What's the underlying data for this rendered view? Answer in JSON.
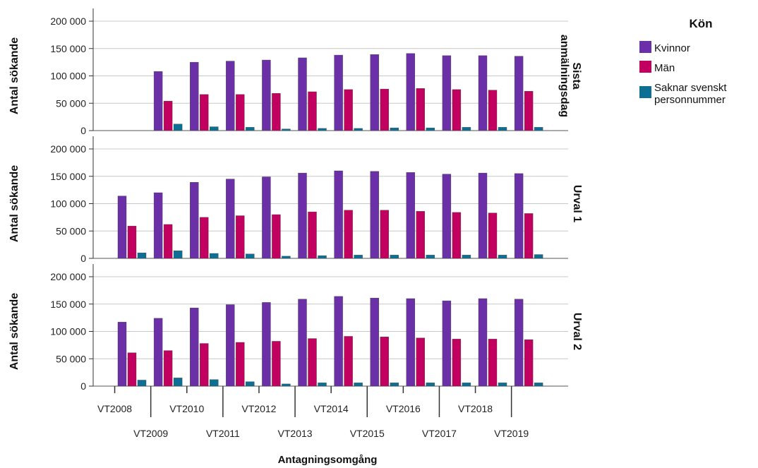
{
  "chart_data": {
    "type": "bar",
    "x_label": "Antagningsomgång",
    "y_label": "Antal sökande",
    "y_ticks": [
      "0",
      "50 000",
      "100 000",
      "150 000",
      "200 000"
    ],
    "ylim": [
      0,
      200000
    ],
    "grid": "horizontal",
    "legend_placement": "right",
    "categories": [
      "VT2008",
      "VT2009",
      "VT2010",
      "VT2011",
      "VT2012",
      "VT2013",
      "VT2014",
      "VT2015",
      "VT2016",
      "VT2017",
      "VT2018",
      "VT2019"
    ],
    "legend": {
      "title": "Kön",
      "entries": [
        {
          "label": "Kvinnor",
          "color": "#6b2fa8"
        },
        {
          "label": "Män",
          "color": "#c1005f"
        },
        {
          "label": "Saknar svenskt personnummer",
          "line1": "Saknar svenskt",
          "line2": "personnummer",
          "color": "#0d6f93"
        }
      ]
    },
    "panels": [
      {
        "label": "Sista anmälningsdag",
        "label_line1": "Sista",
        "label_line2": "anmälningsdag",
        "series": [
          {
            "name": "Kvinnor",
            "values": [
              0,
              108000,
              125000,
              127000,
              129000,
              133000,
              138000,
              139000,
              141000,
              137000,
              137000,
              136000
            ]
          },
          {
            "name": "Män",
            "values": [
              0,
              54000,
              66000,
              66000,
              68000,
              71000,
              75000,
              76000,
              77000,
              75000,
              74000,
              72000
            ]
          },
          {
            "name": "Saknar svenskt personnummer",
            "values": [
              0,
              12000,
              7000,
              6000,
              3000,
              4000,
              4000,
              5000,
              5000,
              6000,
              6000,
              6000
            ]
          }
        ]
      },
      {
        "label": "Urval 1",
        "series": [
          {
            "name": "Kvinnor",
            "values": [
              114000,
              120000,
              139000,
              145000,
              149000,
              156000,
              160000,
              159000,
              157000,
              154000,
              156000,
              155000
            ]
          },
          {
            "name": "Män",
            "values": [
              59000,
              62000,
              75000,
              78000,
              80000,
              85000,
              88000,
              88000,
              86000,
              84000,
              83000,
              82000
            ]
          },
          {
            "name": "Saknar svenskt personnummer",
            "values": [
              10000,
              14000,
              9000,
              8000,
              4000,
              5000,
              6000,
              6000,
              6000,
              6000,
              6000,
              7000
            ]
          }
        ]
      },
      {
        "label": "Urval 2",
        "series": [
          {
            "name": "Kvinnor",
            "values": [
              117000,
              124000,
              143000,
              149000,
              153000,
              159000,
              164000,
              161000,
              160000,
              156000,
              160000,
              159000
            ]
          },
          {
            "name": "Män",
            "values": [
              61000,
              65000,
              78000,
              80000,
              82000,
              87000,
              91000,
              90000,
              88000,
              86000,
              86000,
              85000
            ]
          },
          {
            "name": "Saknar svenskt personnummer",
            "values": [
              11000,
              15000,
              12000,
              8000,
              4000,
              6000,
              6000,
              6000,
              6000,
              6000,
              6000,
              6000
            ]
          }
        ]
      }
    ]
  }
}
